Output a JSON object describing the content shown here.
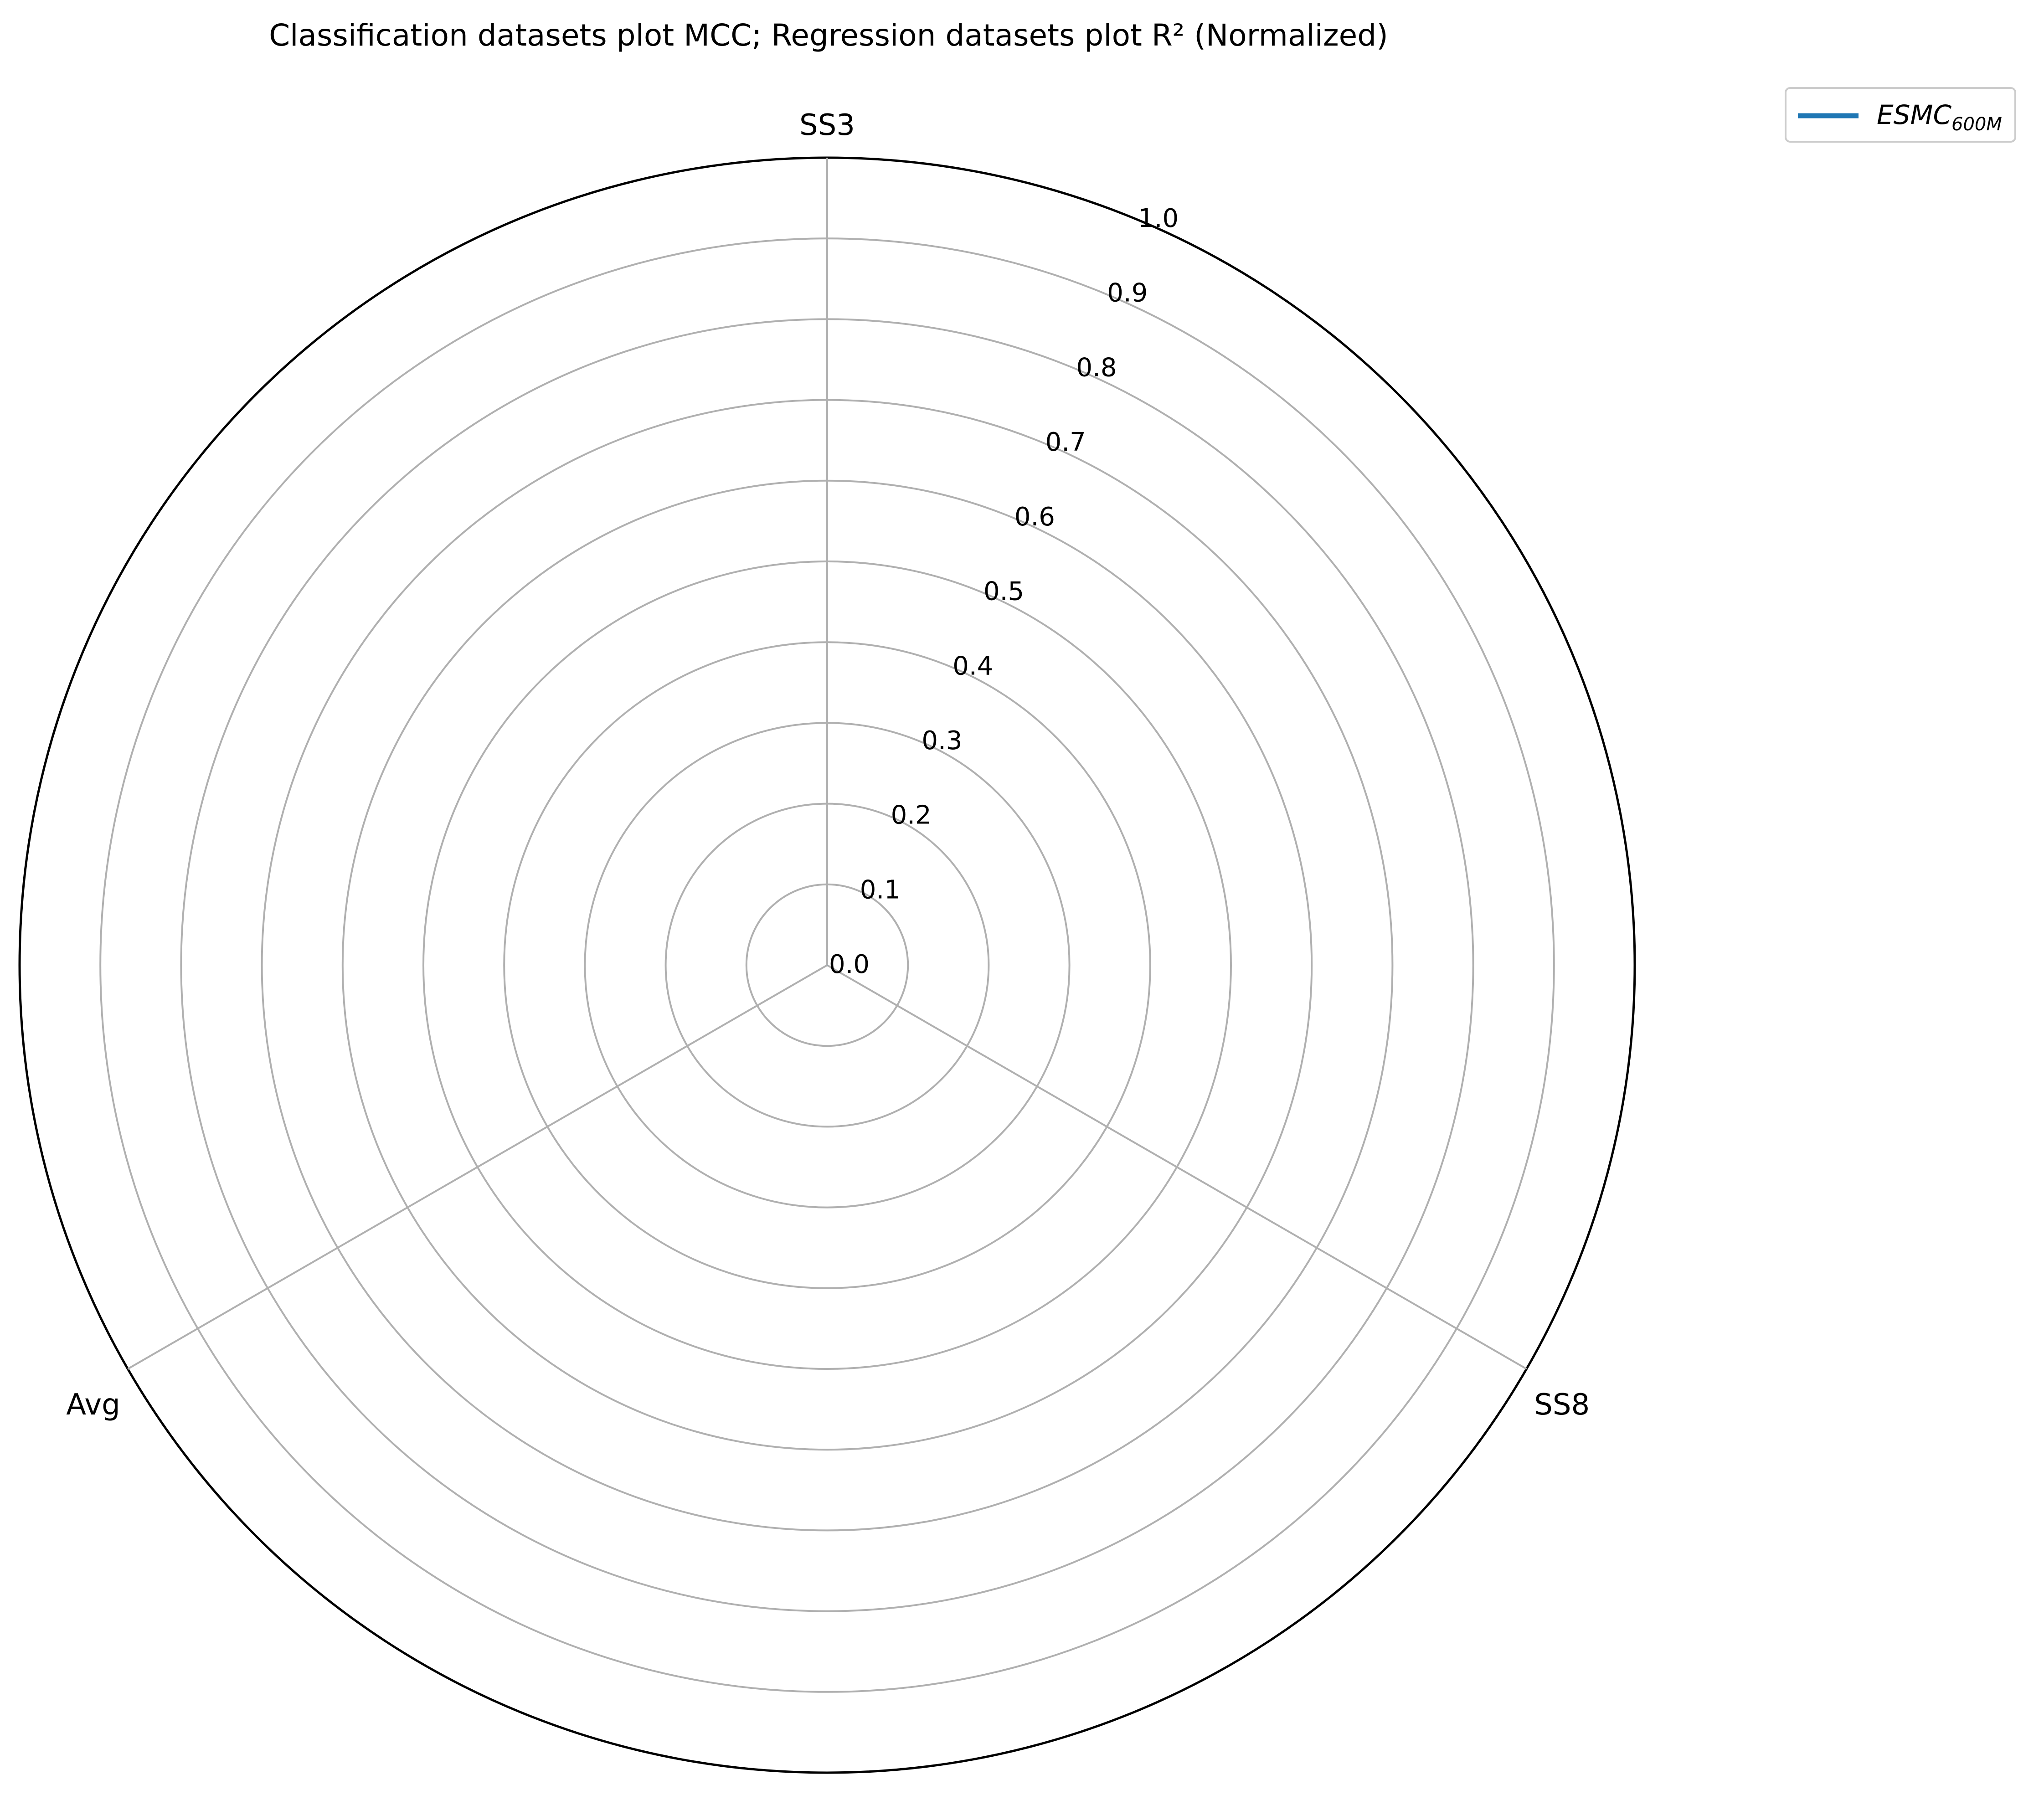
{
  "chart_data": {
    "type": "radar",
    "title": "Classification datasets plot MCC; Regression datasets plot R² (Normalized)",
    "axes": [
      "SS3",
      "SS8",
      "Avg"
    ],
    "rlim": [
      0.0,
      1.0
    ],
    "r_ticks": [
      "0.0",
      "0.1",
      "0.2",
      "0.3",
      "0.4",
      "0.5",
      "0.6",
      "0.7",
      "0.8",
      "0.9",
      "1.0"
    ],
    "grid": true,
    "legend_position": "top-right",
    "series": [
      {
        "name": "ESMC",
        "name_subscript": "600M",
        "color": "#1f77b4",
        "values": [
          0.0,
          0.0,
          0.0
        ]
      }
    ],
    "grid_color": "#b0b0b0",
    "outer_color": "#000000"
  }
}
